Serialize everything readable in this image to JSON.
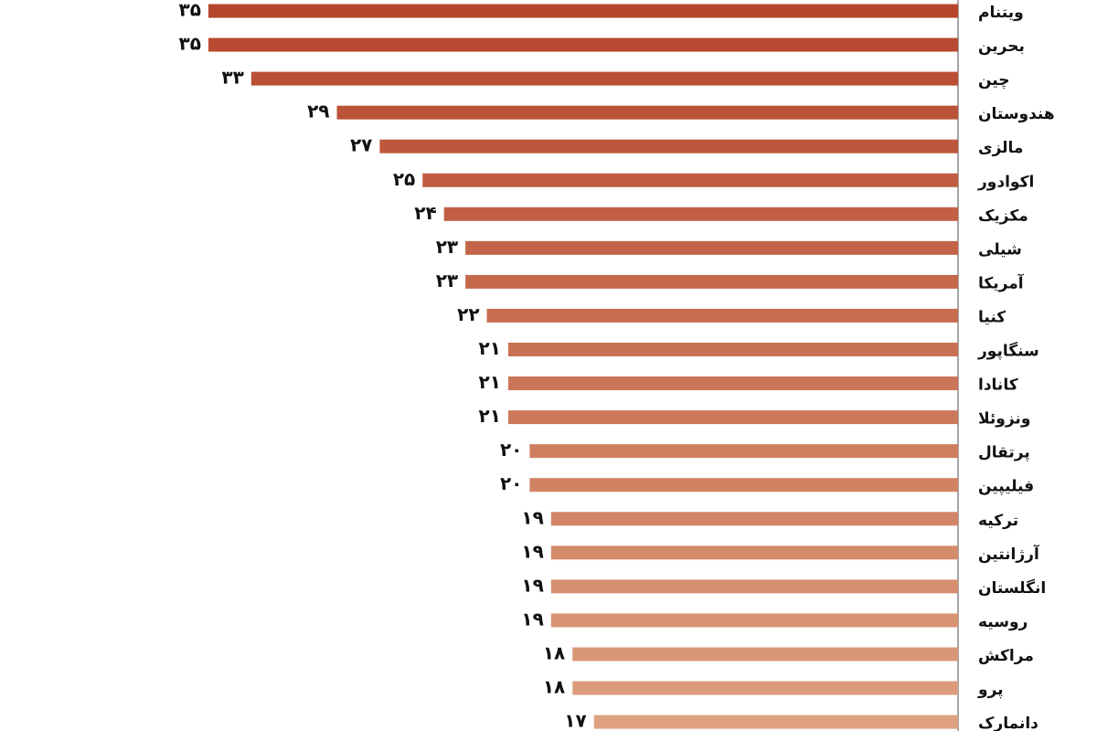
{
  "chart_data": {
    "type": "bar",
    "orientation": "horizontal",
    "categories": [
      "ویتنام",
      "بحرین",
      "چین",
      "هندوستان",
      "مالزی",
      "اکوادور",
      "مکزیک",
      "شیلی",
      "آمریکا",
      "کنیا",
      "سنگاپور",
      "کانادا",
      "ونزوئلا",
      "پرتقال",
      "فیلیپین",
      "ترکیه",
      "آرژانتین",
      "انگلستان",
      "روسیه",
      "مراکش",
      "پرو",
      "دانمارک"
    ],
    "values": [
      35,
      35,
      33,
      29,
      27,
      25,
      24,
      23,
      23,
      22,
      21,
      21,
      21,
      20,
      20,
      19,
      19,
      19,
      19,
      18,
      18,
      17
    ],
    "value_labels": [
      "۳۵",
      "۳۵",
      "۳۳",
      "۲۹",
      "۲۷",
      "۲۵",
      "۲۴",
      "۲۳",
      "۲۳",
      "۲۲",
      "۲۱",
      "۲۱",
      "۲۱",
      "۲۰",
      "۲۰",
      "۱۹",
      "۱۹",
      "۱۹",
      "۱۹",
      "۱۸",
      "۱۸",
      "۱۷"
    ],
    "colors": [
      "#b5462c",
      "#b74a30",
      "#b94f34",
      "#bb5338",
      "#bd573c",
      "#bf5b40",
      "#c16044",
      "#c36448",
      "#c5684c",
      "#c76d50",
      "#c97154",
      "#ca7557",
      "#cc795b",
      "#ce7e5f",
      "#d08263",
      "#d28667",
      "#d48b6b",
      "#d68f6f",
      "#d89373",
      "#da9777",
      "#dc9c7b",
      "#dea07f"
    ]
  }
}
